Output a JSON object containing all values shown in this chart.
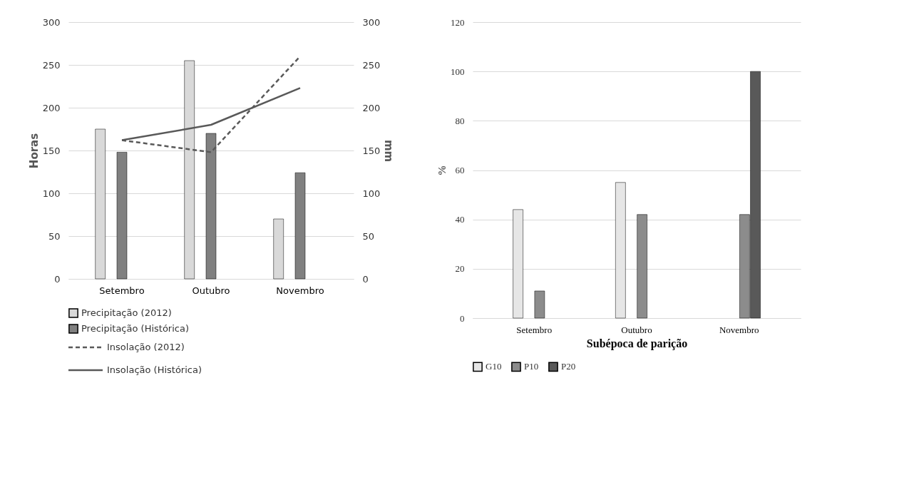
{
  "chart_data": [
    {
      "type": "bar",
      "ylabel": "Horas",
      "y2label": "mm",
      "categories": [
        "Setembro",
        "Outubro",
        "Novembro"
      ],
      "ylim": [
        0,
        300
      ],
      "yticks": [
        0,
        50,
        100,
        150,
        200,
        250,
        300
      ],
      "y2lim": [
        0,
        300
      ],
      "y2ticks": [
        0,
        50,
        100,
        150,
        200,
        250,
        300
      ],
      "grid": "y",
      "legend": "bottom",
      "series": [
        {
          "name": "Precipitação (2012)",
          "type": "bar",
          "axis": "y2",
          "color": "#d9d9d9",
          "values": [
            175,
            255,
            70
          ]
        },
        {
          "name": "Precipitação (Histórica)",
          "type": "bar",
          "axis": "y2",
          "color": "#808080",
          "values": [
            148,
            170,
            124
          ]
        },
        {
          "name": "Insolação (2012)",
          "type": "line",
          "line_style": "dashed",
          "color": "#595959",
          "values": [
            162,
            148,
            260
          ]
        },
        {
          "name": "Insolação (Histórica)",
          "type": "line",
          "line_style": "solid",
          "color": "#595959",
          "values": [
            162,
            180,
            223
          ]
        }
      ]
    },
    {
      "type": "bar",
      "xlabel": "Subépoca de parição",
      "ylabel": "%",
      "categories": [
        "Setembro",
        "Outubro",
        "Novembro"
      ],
      "ylim": [
        0,
        120
      ],
      "yticks": [
        0,
        20,
        40,
        60,
        80,
        100,
        120
      ],
      "grid": "y",
      "legend": "bottom",
      "series": [
        {
          "name": "G10",
          "color": "#e6e6e6",
          "values": [
            44,
            55,
            null
          ]
        },
        {
          "name": "P10",
          "color": "#8c8c8c",
          "values": [
            11,
            42,
            42
          ]
        },
        {
          "name": "P20",
          "color": "#595959",
          "values": [
            null,
            null,
            100
          ]
        }
      ]
    }
  ]
}
